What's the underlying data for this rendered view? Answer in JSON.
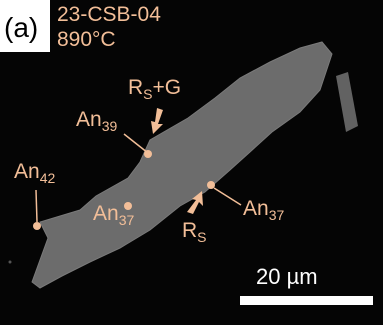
{
  "panel_label": "(a)",
  "sample": "23-CSB-04",
  "temperature": "890°C",
  "annotations": [
    {
      "text": "R",
      "sub": "S",
      "suffix": "+G"
    },
    {
      "text": "An",
      "sub": "39"
    },
    {
      "text": "An",
      "sub": "42"
    },
    {
      "text": "An",
      "sub": "37"
    },
    {
      "text": "An",
      "sub": "37"
    },
    {
      "text": "R",
      "sub": "S"
    }
  ],
  "scale_bar": "20 µm"
}
